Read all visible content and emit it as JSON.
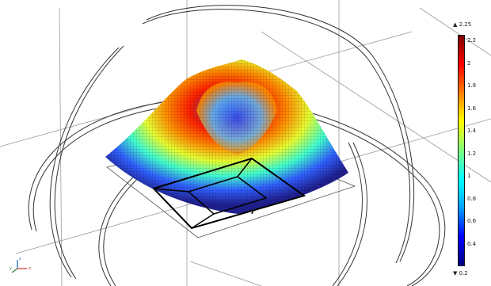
{
  "viewport": {
    "background": "#ffffff"
  },
  "surface_plot": {
    "mesh_color_low": "#1d1d8f",
    "mesh_color_high": "#8a0000",
    "frame_color": "#2b2b2b",
    "outline_color": "#111111"
  },
  "color_legend": {
    "max_label": "▲ 2.25",
    "min_label": "▼ 0.2",
    "ticks": [
      "2.2",
      "2",
      "1.8",
      "1.6",
      "1.4",
      "1.2",
      "1",
      "0.8",
      "0.6",
      "0.4"
    ],
    "tick_values": [
      2.2,
      2.0,
      1.8,
      1.6,
      1.4,
      1.2,
      1.0,
      0.8,
      0.6,
      0.4
    ],
    "range": [
      0.2,
      2.25
    ],
    "colors": [
      "#000080",
      "#0000ff",
      "#00a0ff",
      "#00ffff",
      "#80ff80",
      "#ffff00",
      "#ff8000",
      "#ff0000",
      "#800000"
    ]
  },
  "axis_triad": {
    "x_label": "x",
    "y_label": "y",
    "z_label": "z",
    "x_color": "#d32f2f",
    "y_color": "#2e7d32",
    "z_color": "#1565c0"
  }
}
